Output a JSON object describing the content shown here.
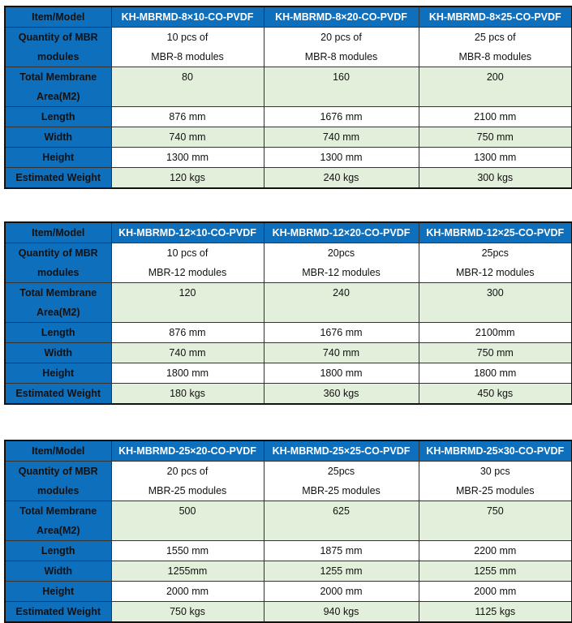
{
  "colors": {
    "header_bg": "#0e6fbd",
    "green_row": "#e2efda"
  },
  "tables": [
    {
      "header": [
        "Item/Model",
        "KH-MBRMD-8×10-CO-PVDF",
        "KH-MBRMD-8×20-CO-PVDF",
        "KH-MBRMD-8×25-CO-PVDF"
      ],
      "rows": [
        {
          "label": "Quantity of MBR modules",
          "values": [
            "10 pcs of\nMBR-8 modules",
            "20 pcs of\nMBR-8 modules",
            "25 pcs of\nMBR-8 modules"
          ]
        },
        {
          "label": "Total Membrane Area(M2)",
          "values": [
            "80",
            "160",
            "200"
          ]
        },
        {
          "label": "Length",
          "values": [
            "876 mm",
            "1676 mm",
            "2100 mm"
          ]
        },
        {
          "label": "Width",
          "values": [
            "740 mm",
            "740 mm",
            "750 mm"
          ]
        },
        {
          "label": "Height",
          "values": [
            "1300 mm",
            "1300 mm",
            "1300 mm"
          ]
        },
        {
          "label": "Estimated Weight",
          "values": [
            "120 kgs",
            "240 kgs",
            "300 kgs"
          ]
        }
      ]
    },
    {
      "header": [
        "Item/Model",
        "KH-MBRMD-12×10-CO-PVDF",
        "KH-MBRMD-12×20-CO-PVDF",
        "KH-MBRMD-12×25-CO-PVDF"
      ],
      "rows": [
        {
          "label": "Quantity of MBR modules",
          "values": [
            "10 pcs of\nMBR-12 modules",
            "20pcs\nMBR-12 modules",
            "25pcs\nMBR-12 modules"
          ]
        },
        {
          "label": "Total Membrane Area(M2)",
          "values": [
            "120",
            "240",
            "300"
          ]
        },
        {
          "label": "Length",
          "values": [
            "876 mm",
            "1676 mm",
            "2100mm"
          ]
        },
        {
          "label": "Width",
          "values": [
            "740 mm",
            "740 mm",
            "750 mm"
          ]
        },
        {
          "label": "Height",
          "values": [
            "1800 mm",
            "1800 mm",
            "1800 mm"
          ]
        },
        {
          "label": "Estimated Weight",
          "values": [
            "180 kgs",
            "360 kgs",
            "450 kgs"
          ]
        }
      ]
    },
    {
      "header": [
        "Item/Model",
        "KH-MBRMD-25×20-CO-PVDF",
        "KH-MBRMD-25×25-CO-PVDF",
        "KH-MBRMD-25×30-CO-PVDF"
      ],
      "rows": [
        {
          "label": "Quantity of MBR modules",
          "values": [
            "20 pcs of\nMBR-25 modules",
            "25pcs\nMBR-25 modules",
            "30 pcs\nMBR-25 modules"
          ]
        },
        {
          "label": "Total Membrane Area(M2)",
          "values": [
            "500",
            "625",
            "750"
          ]
        },
        {
          "label": "Length",
          "values": [
            "1550 mm",
            "1875 mm",
            "2200 mm"
          ]
        },
        {
          "label": "Width",
          "values": [
            "1255mm",
            "1255 mm",
            "1255 mm"
          ]
        },
        {
          "label": "Height",
          "values": [
            "2000 mm",
            "2000 mm",
            "2000 mm"
          ]
        },
        {
          "label": "Estimated Weight",
          "values": [
            "750 kgs",
            "940 kgs",
            "1125 kgs"
          ]
        }
      ]
    }
  ]
}
